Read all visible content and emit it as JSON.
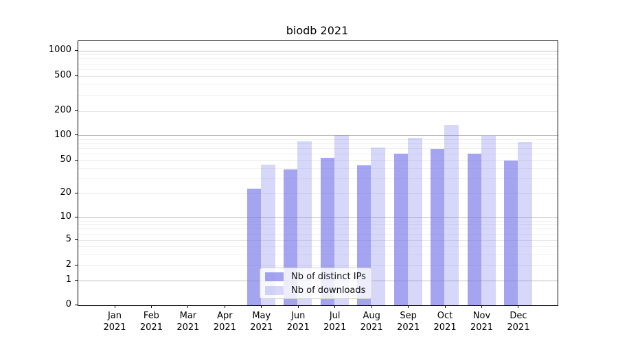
{
  "title": "biodb 2021",
  "chart_data": {
    "type": "bar",
    "title": "biodb 2021",
    "categories": [
      "Jan",
      "Feb",
      "Mar",
      "Apr",
      "May",
      "Jun",
      "Jul",
      "Aug",
      "Sep",
      "Oct",
      "Nov",
      "Dec"
    ],
    "x_tick_year": "2021",
    "series": [
      {
        "name": "Nb of distinct IPs",
        "color": "#7070e8",
        "opacity": 0.64,
        "values": [
          0,
          0,
          0,
          0,
          23,
          39,
          54,
          44,
          60,
          69,
          61,
          50
        ]
      },
      {
        "name": "Nb of downloads",
        "color": "#7070e8",
        "opacity": 0.28,
        "values": [
          0,
          0,
          0,
          0,
          45,
          85,
          101,
          72,
          94,
          135,
          100,
          83
        ]
      }
    ],
    "y_scale": "symlog",
    "y_ticks": [
      0,
      1,
      2,
      5,
      10,
      20,
      50,
      100,
      200,
      500,
      1000
    ],
    "ylim": [
      0,
      1300
    ],
    "grid": "horizontal",
    "grid_major_color": "#bdbdbd",
    "grid_minor_color": "#e6e6e6",
    "legend_position": "lower center-left inside plot"
  }
}
